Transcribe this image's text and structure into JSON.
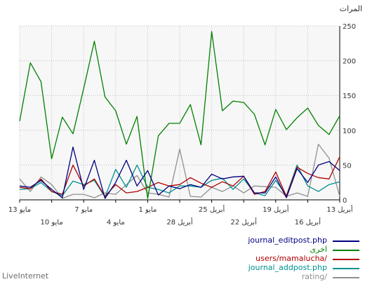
{
  "chart_data": {
    "type": "line",
    "title": "",
    "ylabel": "المرات",
    "ylim": [
      0,
      250
    ],
    "yticks": [
      0,
      50,
      100,
      150,
      200,
      250
    ],
    "grid": true,
    "x_tick_labels_row1": [
      "13 مايو",
      "7 مايو",
      "1 مايو",
      "25 أبريل",
      "19 أبريل",
      "13 أبريل"
    ],
    "x_tick_labels_row2": [
      "10 مايو",
      "4 مايو",
      "28 أبريل",
      "22 أبريل",
      "16 أبريل"
    ],
    "series": [
      {
        "name": "journal_editpost.php",
        "color": "#000080",
        "values": [
          20,
          18,
          28,
          15,
          3,
          76,
          15,
          57,
          2,
          25,
          57,
          20,
          42,
          7,
          20,
          16,
          22,
          18,
          37,
          30,
          33,
          34,
          10,
          10,
          33,
          3,
          45,
          25,
          50,
          55,
          42
        ]
      },
      {
        "name": "اخرى",
        "color": "#008000",
        "values": [
          113,
          197,
          170,
          59,
          119,
          95,
          160,
          228,
          148,
          128,
          80,
          120,
          2,
          92,
          110,
          110,
          137,
          79,
          242,
          128,
          142,
          140,
          123,
          79,
          130,
          101,
          118,
          132,
          107,
          94,
          121
        ]
      },
      {
        "name": "users/mamalucha/",
        "color": "#b00000",
        "values": [
          18,
          16,
          30,
          12,
          8,
          50,
          20,
          30,
          5,
          22,
          10,
          12,
          18,
          25,
          20,
          22,
          32,
          24,
          18,
          26,
          20,
          34,
          8,
          12,
          40,
          5,
          47,
          38,
          32,
          30,
          62
        ]
      },
      {
        "name": "journal_addpost.php",
        "color": "#009090",
        "values": [
          15,
          16,
          25,
          12,
          6,
          27,
          22,
          28,
          4,
          44,
          18,
          50,
          18,
          15,
          10,
          20,
          20,
          18,
          28,
          31,
          15,
          30,
          10,
          6,
          28,
          6,
          50,
          20,
          12,
          22,
          26
        ]
      },
      {
        "name": "rating/",
        "color": "#909090",
        "values": [
          30,
          12,
          33,
          22,
          2,
          8,
          8,
          3,
          10,
          8,
          22,
          35,
          10,
          8,
          4,
          73,
          5,
          4,
          18,
          12,
          20,
          10,
          20,
          19,
          18,
          5,
          10,
          5,
          80,
          60,
          5
        ]
      }
    ]
  },
  "footer": {
    "brand": "LiveInternet"
  }
}
